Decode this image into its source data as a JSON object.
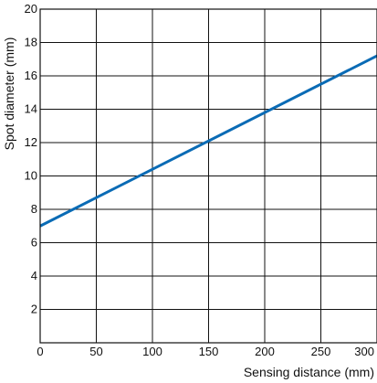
{
  "chart_data": {
    "type": "line",
    "xlabel": "Sensing distance (mm)",
    "ylabel": "Spot diameter (mm)",
    "xlim": [
      0,
      300
    ],
    "ylim": [
      0,
      20
    ],
    "x_ticks": [
      0,
      50,
      100,
      150,
      200,
      250,
      300
    ],
    "y_ticks": [
      2,
      4,
      6,
      8,
      10,
      12,
      14,
      16,
      18,
      20
    ],
    "grid": true,
    "series": [
      {
        "x": [
          0,
          300
        ],
        "y": [
          7.0,
          17.2
        ],
        "color": "#0a6bb5"
      }
    ]
  }
}
